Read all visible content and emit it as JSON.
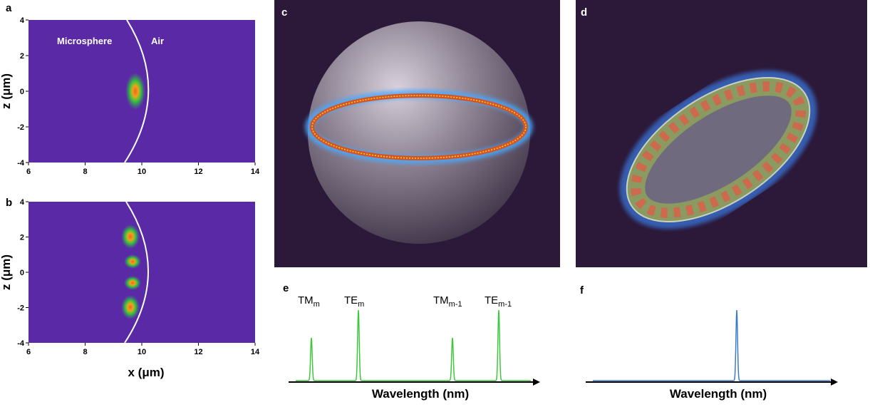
{
  "panels": {
    "a": {
      "label": "a",
      "annotations": [
        "Microsphere",
        "Air"
      ],
      "ylabel": "z (μm)",
      "xlim": [
        6,
        14
      ],
      "ylim": [
        -4,
        4
      ],
      "xticks": [
        6,
        8,
        10,
        12,
        14
      ],
      "yticks": [
        -4,
        -2,
        0,
        2,
        4
      ]
    },
    "b": {
      "label": "b",
      "xlabel": "x (μm)",
      "ylabel": "z (μm)",
      "xlim": [
        6,
        14
      ],
      "ylim": [
        -4,
        4
      ],
      "xticks": [
        6,
        8,
        10,
        12,
        14
      ],
      "yticks": [
        -4,
        -2,
        0,
        2,
        4
      ]
    },
    "c": {
      "label": "c"
    },
    "d": {
      "label": "d"
    },
    "e": {
      "label": "e",
      "peak_labels": [
        {
          "main": "TM",
          "sub": "m"
        },
        {
          "main": "TE",
          "sub": "m"
        },
        {
          "main": "TM",
          "sub": "m-1"
        },
        {
          "main": "TE",
          "sub": "m-1"
        }
      ],
      "xlabel": "Wavelength (nm)"
    },
    "f": {
      "label": "f",
      "xlabel": "Wavelength (nm)"
    }
  }
}
